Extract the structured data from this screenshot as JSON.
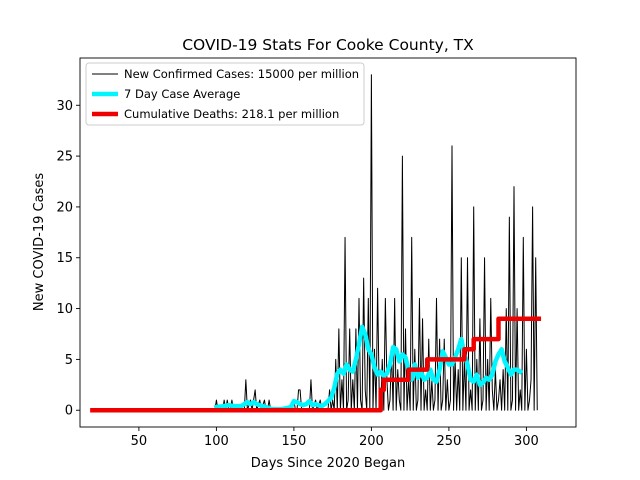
{
  "chart_data": {
    "type": "line",
    "title": "COVID-19 Stats For Cooke County, TX",
    "xlabel": "Days Since 2020 Began",
    "ylabel": "New COVID-19 Cases",
    "xlim": [
      12,
      332
    ],
    "ylim": [
      -1.65,
      34.65
    ],
    "xticks": [
      50,
      100,
      150,
      200,
      250,
      300
    ],
    "yticks": [
      0,
      5,
      10,
      15,
      20,
      25,
      30
    ],
    "grid": false,
    "legend_position": "top-left",
    "series": [
      {
        "name": "New Confirmed Cases: 15000 per million",
        "color": "#000000",
        "style": "thin-line",
        "points": [
          [
            20,
            0
          ],
          [
            99,
            0
          ],
          [
            100,
            1
          ],
          [
            101,
            0
          ],
          [
            104,
            0
          ],
          [
            105,
            1
          ],
          [
            106,
            0
          ],
          [
            107,
            1
          ],
          [
            108,
            0
          ],
          [
            109,
            0
          ],
          [
            110,
            1
          ],
          [
            111,
            0
          ],
          [
            118,
            0
          ],
          [
            119,
            3
          ],
          [
            120,
            0
          ],
          [
            122,
            1
          ],
          [
            123,
            0
          ],
          [
            125,
            2
          ],
          [
            126,
            0
          ],
          [
            128,
            1
          ],
          [
            129,
            0
          ],
          [
            131,
            1
          ],
          [
            132,
            0
          ],
          [
            133,
            0
          ],
          [
            134,
            1
          ],
          [
            135,
            0
          ],
          [
            149,
            0
          ],
          [
            150,
            1
          ],
          [
            151,
            0
          ],
          [
            152,
            0
          ],
          [
            153,
            2
          ],
          [
            154,
            2
          ],
          [
            155,
            0
          ],
          [
            160,
            0
          ],
          [
            161,
            3
          ],
          [
            162,
            0
          ],
          [
            164,
            1
          ],
          [
            165,
            0
          ],
          [
            167,
            1
          ],
          [
            168,
            0
          ],
          [
            172,
            0
          ],
          [
            173,
            2
          ],
          [
            174,
            0
          ],
          [
            175,
            1
          ],
          [
            176,
            0
          ],
          [
            177,
            5
          ],
          [
            178,
            0
          ],
          [
            179,
            8
          ],
          [
            180,
            0
          ],
          [
            181,
            3
          ],
          [
            182,
            0
          ],
          [
            183,
            17
          ],
          [
            184,
            0
          ],
          [
            185,
            1
          ],
          [
            186,
            8
          ],
          [
            187,
            0
          ],
          [
            188,
            3
          ],
          [
            189,
            0
          ],
          [
            190,
            8
          ],
          [
            191,
            0
          ],
          [
            192,
            11
          ],
          [
            193,
            1
          ],
          [
            194,
            0
          ],
          [
            195,
            13
          ],
          [
            196,
            2
          ],
          [
            197,
            0
          ],
          [
            198,
            11
          ],
          [
            199,
            0
          ],
          [
            200,
            33
          ],
          [
            201,
            0
          ],
          [
            202,
            6
          ],
          [
            203,
            0
          ],
          [
            204,
            12
          ],
          [
            205,
            2
          ],
          [
            206,
            0
          ],
          [
            207,
            5
          ],
          [
            208,
            0
          ],
          [
            209,
            11
          ],
          [
            210,
            3
          ],
          [
            211,
            0
          ],
          [
            212,
            1
          ],
          [
            213,
            6
          ],
          [
            214,
            0
          ],
          [
            215,
            11
          ],
          [
            216,
            0
          ],
          [
            217,
            4
          ],
          [
            218,
            1
          ],
          [
            219,
            0
          ],
          [
            220,
            25
          ],
          [
            221,
            0
          ],
          [
            222,
            8
          ],
          [
            223,
            0
          ],
          [
            224,
            3
          ],
          [
            225,
            0
          ],
          [
            226,
            17
          ],
          [
            227,
            0
          ],
          [
            228,
            6
          ],
          [
            229,
            0
          ],
          [
            230,
            1
          ],
          [
            231,
            11
          ],
          [
            232,
            0
          ],
          [
            233,
            9
          ],
          [
            234,
            0
          ],
          [
            235,
            2
          ],
          [
            236,
            0
          ],
          [
            237,
            7
          ],
          [
            238,
            0
          ],
          [
            239,
            3
          ],
          [
            240,
            0
          ],
          [
            241,
            1
          ],
          [
            242,
            11
          ],
          [
            243,
            0
          ],
          [
            244,
            7
          ],
          [
            245,
            0
          ],
          [
            246,
            1
          ],
          [
            247,
            7
          ],
          [
            248,
            0
          ],
          [
            249,
            3
          ],
          [
            250,
            0
          ],
          [
            251,
            1
          ],
          [
            252,
            26
          ],
          [
            253,
            0
          ],
          [
            254,
            5
          ],
          [
            255,
            0
          ],
          [
            256,
            4
          ],
          [
            257,
            0
          ],
          [
            258,
            15
          ],
          [
            259,
            0
          ],
          [
            260,
            5
          ],
          [
            261,
            0
          ],
          [
            262,
            15
          ],
          [
            263,
            0
          ],
          [
            264,
            2
          ],
          [
            265,
            0
          ],
          [
            266,
            20
          ],
          [
            267,
            0
          ],
          [
            268,
            5
          ],
          [
            269,
            0
          ],
          [
            270,
            9
          ],
          [
            271,
            0
          ],
          [
            272,
            1
          ],
          [
            273,
            15
          ],
          [
            274,
            0
          ],
          [
            275,
            5
          ],
          [
            276,
            0
          ],
          [
            277,
            11
          ],
          [
            278,
            2
          ],
          [
            279,
            0
          ],
          [
            280,
            4
          ],
          [
            281,
            0
          ],
          [
            282,
            1
          ],
          [
            283,
            3
          ],
          [
            284,
            0
          ],
          [
            285,
            4
          ],
          [
            286,
            0
          ],
          [
            287,
            10
          ],
          [
            288,
            0
          ],
          [
            289,
            19
          ],
          [
            290,
            0
          ],
          [
            291,
            1
          ],
          [
            292,
            22
          ],
          [
            293,
            0
          ],
          [
            294,
            10
          ],
          [
            295,
            0
          ],
          [
            296,
            2
          ],
          [
            297,
            0
          ],
          [
            298,
            17
          ],
          [
            299,
            0
          ],
          [
            300,
            6
          ],
          [
            301,
            0
          ],
          [
            302,
            1
          ],
          [
            303,
            3
          ],
          [
            304,
            20
          ],
          [
            305,
            0
          ],
          [
            306,
            15
          ],
          [
            307,
            0
          ]
        ]
      },
      {
        "name": "7 Day Case Average",
        "color": "#00f5ff",
        "style": "thick-line",
        "points": [
          [
            100,
            0.3
          ],
          [
            104,
            0.4
          ],
          [
            108,
            0.5
          ],
          [
            112,
            0.4
          ],
          [
            116,
            0.4
          ],
          [
            118,
            0.6
          ],
          [
            120,
            0.8
          ],
          [
            122,
            0.6
          ],
          [
            124,
            0.8
          ],
          [
            126,
            0.6
          ],
          [
            128,
            0.5
          ],
          [
            130,
            0.4
          ],
          [
            132,
            0.3
          ],
          [
            136,
            0.1
          ],
          [
            142,
            0.1
          ],
          [
            148,
            0.3
          ],
          [
            150,
            0.9
          ],
          [
            152,
            0.8
          ],
          [
            154,
            0.6
          ],
          [
            156,
            0.5
          ],
          [
            158,
            0.6
          ],
          [
            160,
            0.9
          ],
          [
            162,
            0.5
          ],
          [
            164,
            0.6
          ],
          [
            166,
            0.5
          ],
          [
            168,
            0.4
          ],
          [
            170,
            0.6
          ],
          [
            172,
            0.9
          ],
          [
            174,
            1.2
          ],
          [
            176,
            2.2
          ],
          [
            178,
            3.6
          ],
          [
            180,
            4.0
          ],
          [
            182,
            3.6
          ],
          [
            184,
            4.5
          ],
          [
            186,
            4.0
          ],
          [
            188,
            3.8
          ],
          [
            190,
            5.0
          ],
          [
            192,
            6.5
          ],
          [
            194,
            8.2
          ],
          [
            196,
            7.5
          ],
          [
            198,
            6.0
          ],
          [
            200,
            5.5
          ],
          [
            202,
            4.2
          ],
          [
            204,
            3.5
          ],
          [
            206,
            3.8
          ],
          [
            208,
            3.4
          ],
          [
            210,
            3.6
          ],
          [
            212,
            4.5
          ],
          [
            214,
            6.2
          ],
          [
            216,
            6.0
          ],
          [
            218,
            4.8
          ],
          [
            220,
            5.5
          ],
          [
            222,
            5.2
          ],
          [
            224,
            4.0
          ],
          [
            226,
            3.0
          ],
          [
            228,
            4.5
          ],
          [
            230,
            3.2
          ],
          [
            232,
            3.8
          ],
          [
            234,
            3.0
          ],
          [
            236,
            3.2
          ],
          [
            238,
            4.0
          ],
          [
            240,
            3.0
          ],
          [
            242,
            2.8
          ],
          [
            244,
            4.0
          ],
          [
            246,
            5.8
          ],
          [
            248,
            5.2
          ],
          [
            250,
            4.5
          ],
          [
            252,
            4.5
          ],
          [
            254,
            5.2
          ],
          [
            256,
            6.0
          ],
          [
            258,
            7.0
          ],
          [
            260,
            5.5
          ],
          [
            262,
            4.5
          ],
          [
            264,
            3.0
          ],
          [
            266,
            2.8
          ],
          [
            268,
            3.5
          ],
          [
            270,
            2.5
          ],
          [
            272,
            2.7
          ],
          [
            274,
            3.2
          ],
          [
            276,
            3.0
          ],
          [
            278,
            3.5
          ],
          [
            280,
            4.8
          ],
          [
            282,
            5.5
          ],
          [
            284,
            6.0
          ],
          [
            286,
            4.8
          ],
          [
            288,
            4.2
          ],
          [
            290,
            3.5
          ],
          [
            292,
            4.0
          ],
          [
            294,
            4.0
          ],
          [
            296,
            3.8
          ]
        ]
      },
      {
        "name": "Cumulative Deaths: 218.1 per million",
        "color": "#ee0000",
        "style": "thick-step",
        "points": [
          [
            20,
            0
          ],
          [
            206,
            0
          ],
          [
            206,
            2
          ],
          [
            208,
            2
          ],
          [
            208,
            3
          ],
          [
            224,
            3
          ],
          [
            224,
            4
          ],
          [
            236,
            4
          ],
          [
            236,
            5
          ],
          [
            260,
            5
          ],
          [
            260,
            6
          ],
          [
            266,
            6
          ],
          [
            266,
            7
          ],
          [
            282,
            7
          ],
          [
            282,
            9
          ],
          [
            308,
            9
          ]
        ]
      }
    ]
  }
}
